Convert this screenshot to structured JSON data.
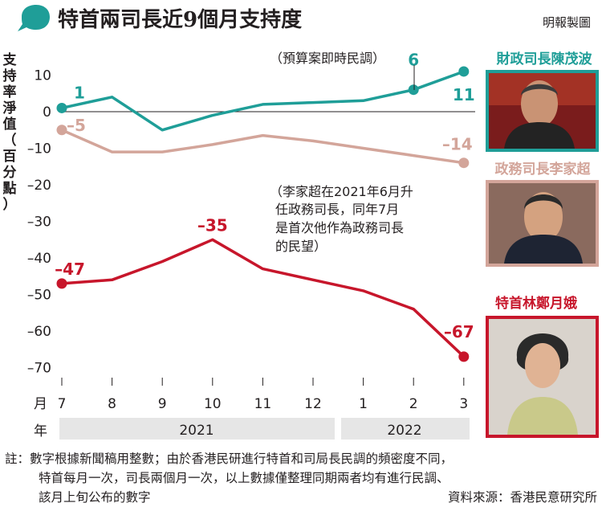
{
  "header": {
    "title": "特首兩司長近9個月支持度",
    "credit": "明報製圖"
  },
  "y_axis_label_chars": [
    "支",
    "持",
    "率",
    "淨",
    "值",
    "（",
    "百",
    "分",
    "點",
    "）"
  ],
  "x_axis": {
    "month_prefix": "月",
    "year_prefix": "年",
    "years": [
      {
        "label": "2021",
        "span": [
          "7",
          "12"
        ]
      },
      {
        "label": "2022",
        "span": [
          "1",
          "3"
        ]
      }
    ]
  },
  "annotations": {
    "budget": "（預算案即時民調）",
    "lee_note_lines": [
      "（李家超在2021年6月升",
      "任政務司長，同年7月",
      "是首次他作為政務司長",
      "的民望）"
    ]
  },
  "officials": [
    {
      "name": "財政司長陳茂波",
      "color": "#1f9e98",
      "photo": "photo-paul-chan"
    },
    {
      "name": "政務司長李家超",
      "color": "#d3a59a",
      "photo": "photo-john-lee"
    },
    {
      "name": "特首林鄭月娥",
      "color": "#c7162b",
      "photo": "photo-carrie-lam"
    }
  ],
  "footnote": {
    "lines": [
      "註：數字根據新聞稿用整數；由於香港民研進行特首和司局長民調的頻密度不同，",
      "特首每月一次，司長兩個月一次，以上數據僅整理同期兩者均有進行民調、",
      "該月上旬公布的數字"
    ],
    "source": "資料來源：香港民意研究所"
  },
  "chart_data": {
    "type": "line",
    "title": "特首兩司長近9個月支持度",
    "ylabel": "支持率淨值（百分點）",
    "xlabel": "月",
    "categories": [
      "7",
      "8",
      "9",
      "10",
      "11",
      "12",
      "1",
      "2",
      "3"
    ],
    "ylim": [
      -72,
      13
    ],
    "yticks": [
      10,
      0,
      -10,
      -20,
      -30,
      -40,
      -50,
      -60,
      -70
    ],
    "ytick_labels": [
      "10",
      "0",
      "–10",
      "–20",
      "–30",
      "–40",
      "–50",
      "–60",
      "–70"
    ],
    "grid": false,
    "series": [
      {
        "name": "財政司長陳茂波",
        "color": "#1f9e98",
        "values": [
          1,
          4,
          -5,
          -1,
          2,
          2.5,
          3,
          6,
          11
        ],
        "labels": [
          {
            "index": 0,
            "text": "1"
          },
          {
            "index": 7,
            "text": "6"
          },
          {
            "index": 8,
            "text": "11"
          }
        ],
        "markers": [
          0,
          7,
          8
        ]
      },
      {
        "name": "政務司長李家超",
        "color": "#d3a59a",
        "values": [
          -5,
          -11,
          -11,
          -9,
          -6.5,
          -8,
          -10,
          -12,
          -14
        ],
        "labels": [
          {
            "index": 0,
            "text": "–5"
          },
          {
            "index": 8,
            "text": "–14"
          }
        ],
        "markers": [
          0,
          8
        ]
      },
      {
        "name": "特首林鄭月娥",
        "color": "#c7162b",
        "values": [
          -47,
          -46,
          -41,
          -35,
          -43,
          -46,
          -49,
          -54,
          -67
        ],
        "labels": [
          {
            "index": 0,
            "text": "–47"
          },
          {
            "index": 3,
            "text": "–35"
          },
          {
            "index": 8,
            "text": "–67"
          }
        ],
        "markers": [
          0,
          8
        ]
      }
    ]
  }
}
